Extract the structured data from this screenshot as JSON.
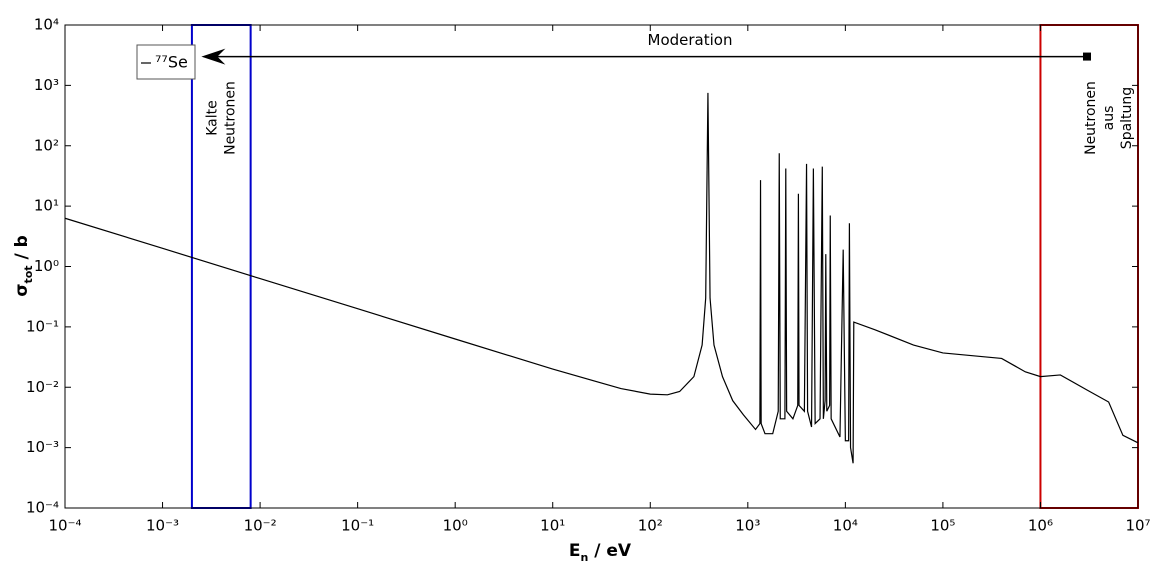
{
  "chart_data": {
    "type": "line",
    "xlabel": [
      "E",
      "n",
      " / eV"
    ],
    "ylabel": [
      "σ",
      "tot",
      " / b"
    ],
    "xlog": true,
    "ylog": true,
    "xlim": [
      0.0001,
      10000000
    ],
    "ylim": [
      0.0001,
      10000
    ],
    "xticks": [
      {
        "value": 0.0001,
        "label": "10⁻⁴"
      },
      {
        "value": 0.001,
        "label": "10⁻³"
      },
      {
        "value": 0.01,
        "label": "10⁻²"
      },
      {
        "value": 0.1,
        "label": "10⁻¹"
      },
      {
        "value": 1,
        "label": "10⁰"
      },
      {
        "value": 10,
        "label": "10¹"
      },
      {
        "value": 100,
        "label": "10²"
      },
      {
        "value": 1000,
        "label": "10³"
      },
      {
        "value": 10000,
        "label": "10⁴"
      },
      {
        "value": 100000,
        "label": "10⁵"
      },
      {
        "value": 1000000,
        "label": "10⁶"
      },
      {
        "value": 10000000,
        "label": "10⁷"
      }
    ],
    "yticks": [
      {
        "value": 0.0001,
        "label": "10⁻⁴"
      },
      {
        "value": 0.001,
        "label": "10⁻³"
      },
      {
        "value": 0.01,
        "label": "10⁻²"
      },
      {
        "value": 0.1,
        "label": "10⁻¹"
      },
      {
        "value": 1,
        "label": "10⁰"
      },
      {
        "value": 10,
        "label": "10¹"
      },
      {
        "value": 100,
        "label": "10²"
      },
      {
        "value": 1000,
        "label": "10³"
      },
      {
        "value": 10000,
        "label": "10⁴"
      }
    ],
    "legend": "upper left",
    "x": [
      0.0001,
      0.001,
      0.01,
      0.1,
      1,
      10,
      50,
      100,
      150,
      200,
      280,
      340,
      370,
      390,
      410,
      450,
      550,
      700,
      900,
      1200,
      1330,
      1350,
      1370,
      1500,
      1800,
      2050,
      2100,
      2150,
      2400,
      2450,
      2500,
      2900,
      3250,
      3300,
      3350,
      3800,
      4000,
      4100,
      4500,
      4700,
      4900,
      5500,
      5800,
      5950,
      6200,
      6300,
      6450,
      6900,
      7000,
      7150,
      8800,
      9500,
      10000,
      10800,
      11000,
      11300,
      12000,
      12200,
      20000,
      50000,
      100000,
      400000,
      700000,
      1000000,
      1600000,
      3000000,
      5000000,
      7000000,
      10000000
    ],
    "series": [
      {
        "name": "⁷⁷Se",
        "color": "#000000",
        "values": [
          6.3,
          2,
          0.63,
          0.2,
          0.063,
          0.02,
          0.0095,
          0.0077,
          0.0075,
          0.0085,
          0.015,
          0.05,
          0.3,
          750,
          0.3,
          0.05,
          0.015,
          0.006,
          0.0035,
          0.002,
          0.0025,
          27,
          0.0025,
          0.0017,
          0.0017,
          0.004,
          75,
          0.003,
          0.003,
          42,
          0.004,
          0.003,
          0.005,
          16,
          0.005,
          0.004,
          50,
          0.004,
          0.0022,
          42,
          0.0025,
          0.003,
          45,
          0.003,
          0.006,
          1.6,
          0.004,
          0.005,
          7,
          0.003,
          0.0015,
          1.9,
          0.0013,
          0.0013,
          5.2,
          0.001,
          0.00055,
          0.12,
          0.09,
          0.05,
          0.037,
          0.03,
          0.018,
          0.015,
          0.016,
          0.009,
          0.0057,
          0.0016,
          0.0012
        ]
      }
    ],
    "regions": [
      {
        "label": [
          "Kalte",
          "Neutronen"
        ],
        "x": [
          0.002,
          0.008
        ],
        "color": "#0000cc"
      },
      {
        "label": [
          "Neutronen",
          "aus",
          "Spaltung"
        ],
        "x": [
          1000000,
          10000000
        ],
        "color": "#cc0000"
      }
    ],
    "arrow": {
      "label": "Moderation",
      "from": 3000000,
      "to": 0.0025,
      "y": 3000
    }
  }
}
